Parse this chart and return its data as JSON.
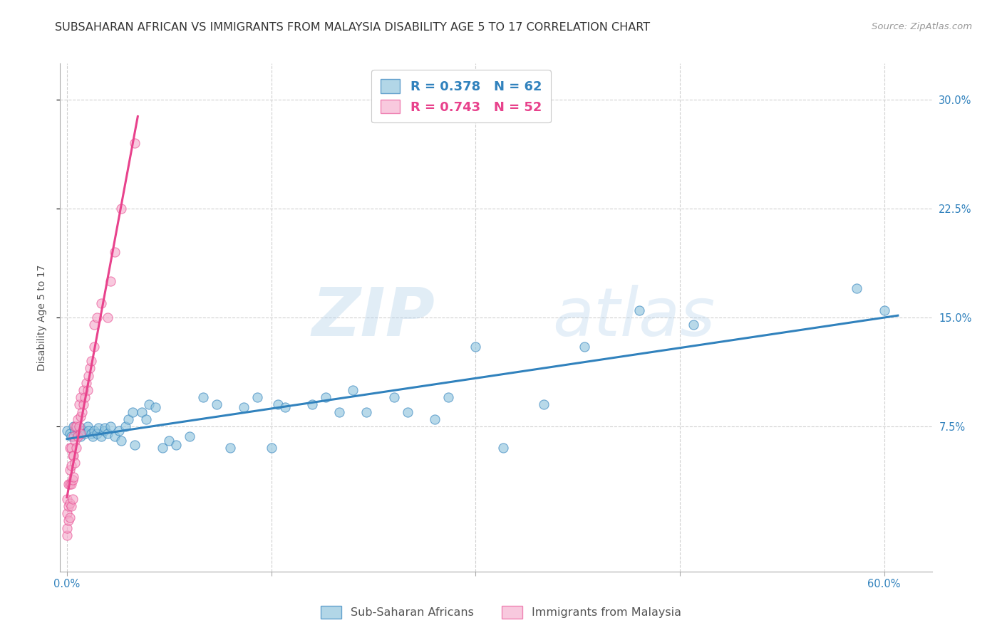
{
  "title": "SUBSAHARAN AFRICAN VS IMMIGRANTS FROM MALAYSIA DISABILITY AGE 5 TO 17 CORRELATION CHART",
  "source": "Source: ZipAtlas.com",
  "xlabel_ticks": [
    "0.0%",
    "",
    "",
    "",
    "60.0%"
  ],
  "xlabel_tick_vals": [
    0.0,
    0.15,
    0.3,
    0.45,
    0.6
  ],
  "ylabel": "Disability Age 5 to 17",
  "ylabel_ticks": [
    "7.5%",
    "15.0%",
    "22.5%",
    "30.0%"
  ],
  "ylabel_tick_vals": [
    0.075,
    0.15,
    0.225,
    0.3
  ],
  "xlim": [
    -0.005,
    0.635
  ],
  "ylim": [
    -0.025,
    0.325
  ],
  "blue_color": "#92c5de",
  "blue_color_line": "#3182bd",
  "pink_color": "#f4a6c8",
  "pink_color_line": "#e8428c",
  "legend_r_blue": "R = 0.378",
  "legend_n_blue": "N = 62",
  "legend_r_pink": "R = 0.743",
  "legend_n_pink": "N = 52",
  "legend_label_blue": "Sub-Saharan Africans",
  "legend_label_pink": "Immigrants from Malaysia",
  "blue_scatter_x": [
    0.0,
    0.002,
    0.003,
    0.005,
    0.006,
    0.008,
    0.01,
    0.01,
    0.012,
    0.013,
    0.015,
    0.016,
    0.018,
    0.019,
    0.02,
    0.022,
    0.023,
    0.025,
    0.027,
    0.028,
    0.03,
    0.032,
    0.035,
    0.038,
    0.04,
    0.043,
    0.045,
    0.048,
    0.05,
    0.055,
    0.058,
    0.06,
    0.065,
    0.07,
    0.075,
    0.08,
    0.09,
    0.1,
    0.11,
    0.12,
    0.13,
    0.14,
    0.15,
    0.155,
    0.16,
    0.18,
    0.19,
    0.2,
    0.21,
    0.22,
    0.24,
    0.25,
    0.27,
    0.28,
    0.3,
    0.32,
    0.35,
    0.38,
    0.42,
    0.46,
    0.58,
    0.6
  ],
  "blue_scatter_y": [
    0.072,
    0.07,
    0.068,
    0.075,
    0.072,
    0.07,
    0.068,
    0.074,
    0.072,
    0.07,
    0.075,
    0.072,
    0.07,
    0.068,
    0.072,
    0.07,
    0.074,
    0.068,
    0.072,
    0.074,
    0.07,
    0.075,
    0.068,
    0.072,
    0.065,
    0.075,
    0.08,
    0.085,
    0.062,
    0.085,
    0.08,
    0.09,
    0.088,
    0.06,
    0.065,
    0.062,
    0.068,
    0.095,
    0.09,
    0.06,
    0.088,
    0.095,
    0.06,
    0.09,
    0.088,
    0.09,
    0.095,
    0.085,
    0.1,
    0.085,
    0.095,
    0.085,
    0.08,
    0.095,
    0.13,
    0.06,
    0.09,
    0.13,
    0.155,
    0.145,
    0.17,
    0.155
  ],
  "pink_scatter_x": [
    0.0,
    0.0,
    0.0,
    0.0,
    0.001,
    0.001,
    0.001,
    0.002,
    0.002,
    0.002,
    0.002,
    0.002,
    0.003,
    0.003,
    0.003,
    0.003,
    0.004,
    0.004,
    0.004,
    0.005,
    0.005,
    0.005,
    0.006,
    0.006,
    0.006,
    0.007,
    0.007,
    0.008,
    0.008,
    0.009,
    0.009,
    0.01,
    0.01,
    0.01,
    0.011,
    0.012,
    0.012,
    0.013,
    0.014,
    0.015,
    0.016,
    0.017,
    0.018,
    0.02,
    0.02,
    0.022,
    0.025,
    0.03,
    0.032,
    0.035,
    0.04,
    0.05
  ],
  "pink_scatter_y": [
    0.0,
    0.005,
    0.015,
    0.025,
    0.01,
    0.02,
    0.035,
    0.012,
    0.022,
    0.035,
    0.045,
    0.06,
    0.02,
    0.035,
    0.048,
    0.06,
    0.025,
    0.038,
    0.055,
    0.04,
    0.055,
    0.068,
    0.05,
    0.065,
    0.075,
    0.06,
    0.075,
    0.068,
    0.08,
    0.075,
    0.09,
    0.07,
    0.082,
    0.095,
    0.085,
    0.09,
    0.1,
    0.095,
    0.105,
    0.1,
    0.11,
    0.115,
    0.12,
    0.13,
    0.145,
    0.15,
    0.16,
    0.15,
    0.175,
    0.195,
    0.225,
    0.27
  ],
  "watermark_zip": "ZIP",
  "watermark_atlas": "atlas",
  "bg_color": "#ffffff",
  "grid_color": "#d0d0d0",
  "title_fontsize": 11.5,
  "axis_label_fontsize": 10,
  "tick_fontsize": 10.5,
  "source_fontsize": 9.5
}
